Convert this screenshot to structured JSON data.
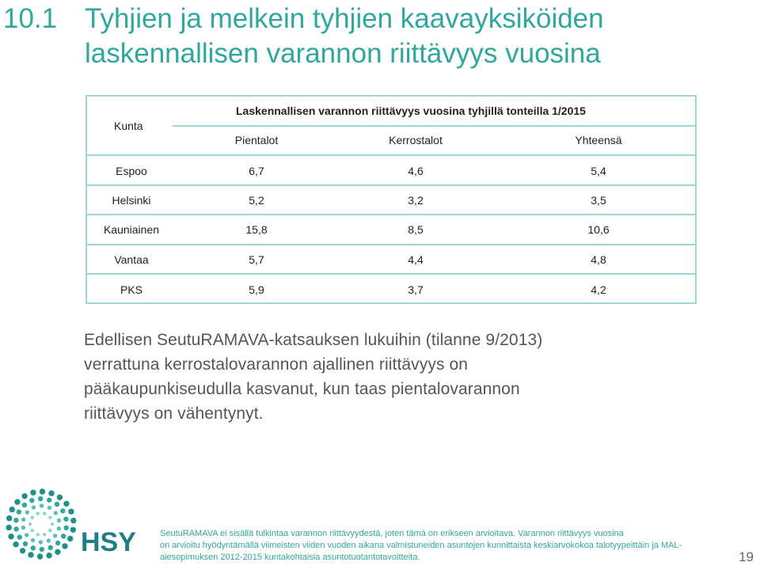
{
  "title": {
    "number": "10.1",
    "line1": "Tyhjien ja melkein tyhjien kaavayksiköiden",
    "line2": "laskennallisen varannon riittävyys vuosina"
  },
  "table": {
    "kunta_header": "Kunta",
    "main_header": "Laskennallisen varannon riittävyys vuosina tyhjillä tonteilla 1/2015",
    "columns": [
      "Pientalot",
      "Kerrostalot",
      "Yhteensä"
    ],
    "rows": [
      {
        "kunta": "Espoo",
        "values": [
          "6,7",
          "4,6",
          "5,4"
        ]
      },
      {
        "kunta": "Helsinki",
        "values": [
          "5,2",
          "3,2",
          "3,5"
        ]
      },
      {
        "kunta": "Kauniainen",
        "values": [
          "15,8",
          "8,5",
          "10,6"
        ]
      },
      {
        "kunta": "Vantaa",
        "values": [
          "5,7",
          "4,4",
          "4,8"
        ]
      },
      {
        "kunta": "PKS",
        "values": [
          "5,9",
          "3,7",
          "4,2"
        ]
      }
    ]
  },
  "paragraph": {
    "line1": "Edellisen SeutuRAMAVA-katsauksen lukuihin (tilanne 9/2013)",
    "line2": "verrattuna kerrostalovarannon ajallinen riittävyys on",
    "line3": "pääkaupunkiseudulla kasvanut, kun taas pientalovarannon",
    "line4": "riittävyys on vähentynyt."
  },
  "logo": {
    "text": "HSY",
    "icon": "hsy-flower-logo-icon"
  },
  "footer": {
    "line1": "SeutuRAMAVA ei sisällä tulkintaa varannon riittävyydestä, joten tämä on erikseen arvioitava. Varannon riittävyys vuosina",
    "line2": "on arvioitu hyödyntämällä viimeisten viiden vuoden aikana valmistuneiden asuntojen kunnittaista keskiarvokokoa talotyypeittäin ja MAL-",
    "line3": "aiesopimuksen 2012-2015 kuntakohtaisia asuntotuotantotavoitteita."
  },
  "page_number": "19",
  "colors": {
    "accent": "#2ea79d",
    "table_border": "#9fd7d2",
    "logo_dark": "#1f7f86"
  }
}
